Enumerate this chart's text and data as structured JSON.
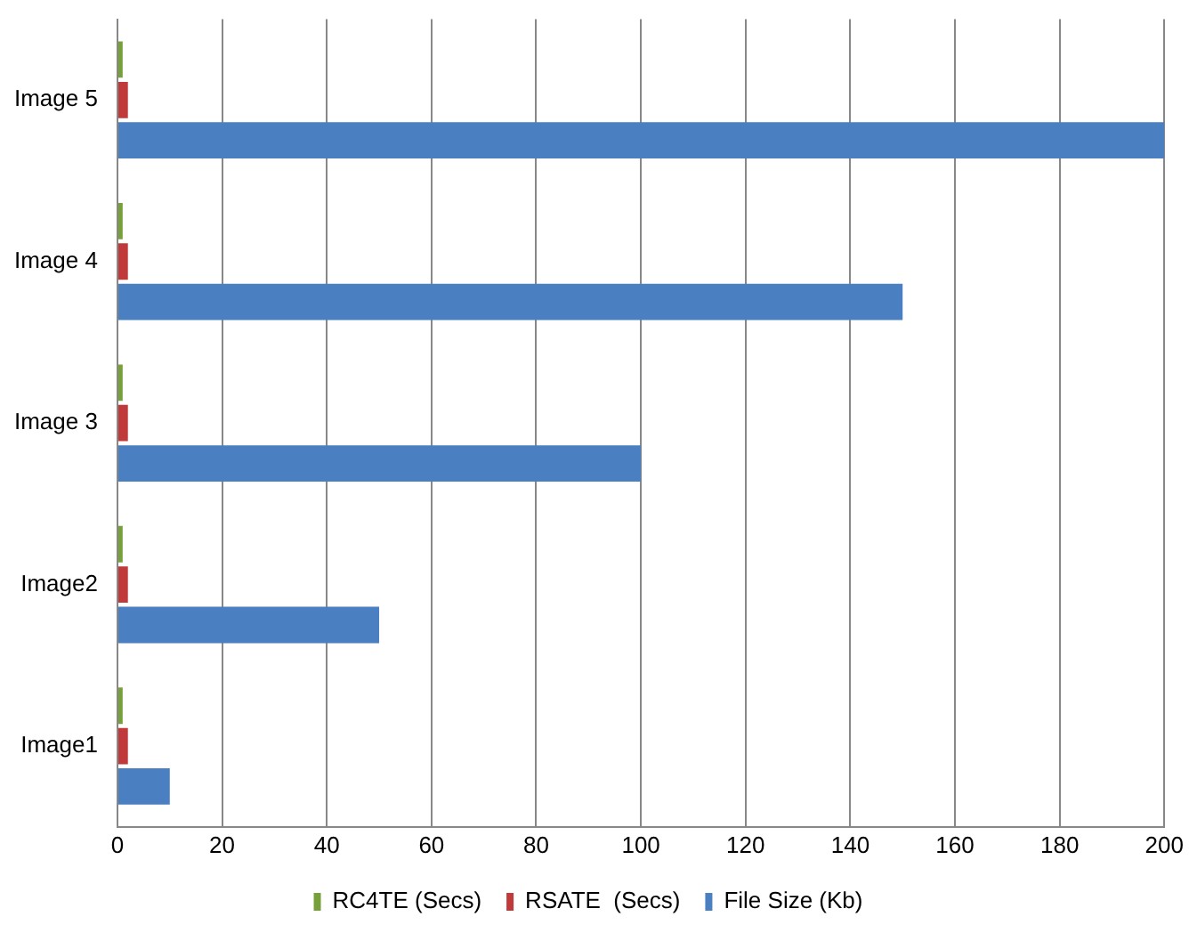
{
  "chart_data": {
    "type": "bar",
    "orientation": "horizontal",
    "categories": [
      "Image 5",
      "Image 4",
      "Image 3",
      "Image2",
      "Image1"
    ],
    "series": [
      {
        "name": "RC4TE (Secs)",
        "color": "#77a03a",
        "values": [
          1,
          1,
          1,
          1,
          1
        ]
      },
      {
        "name": "RSATE  (Secs)",
        "color": "#c0393b",
        "values": [
          2,
          2,
          2,
          2,
          2
        ]
      },
      {
        "name": "File Size (Kb)",
        "color": "#4a7fc1",
        "values": [
          200,
          150,
          100,
          50,
          10
        ]
      }
    ],
    "xlim": [
      0,
      200
    ],
    "xticks": [
      0,
      20,
      40,
      60,
      80,
      100,
      120,
      140,
      160,
      180,
      200
    ],
    "grid": "x",
    "legend": "bottom"
  }
}
